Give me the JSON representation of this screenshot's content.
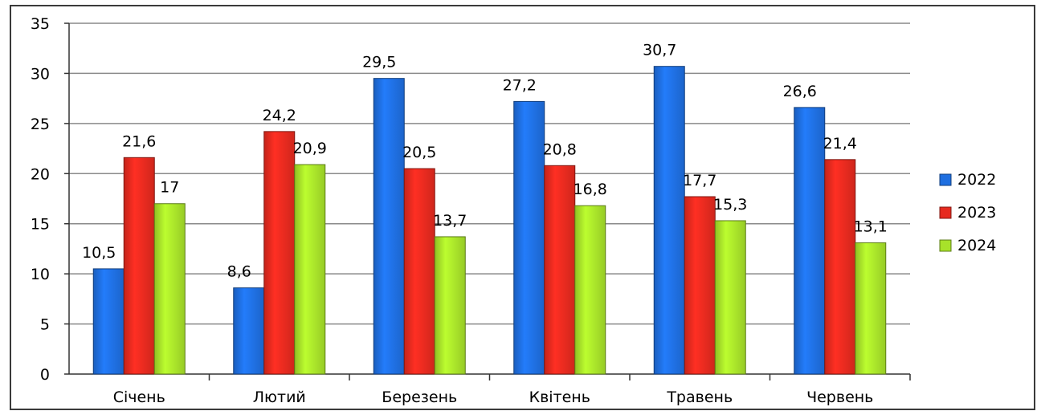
{
  "chart_data": {
    "type": "bar",
    "categories": [
      "Січень",
      "Лютий",
      "Березень",
      "Квітень",
      "Травень",
      "Червень"
    ],
    "series": [
      {
        "name": "2022",
        "values": [
          10.5,
          8.6,
          29.5,
          27.2,
          30.7,
          26.6
        ],
        "labels": [
          "10,5",
          "8,6",
          "29,5",
          "27,2",
          "30,7",
          "26,6"
        ],
        "color": "#1f6fe0"
      },
      {
        "name": "2023",
        "values": [
          21.6,
          24.2,
          20.5,
          20.8,
          17.7,
          21.4
        ],
        "labels": [
          "21,6",
          "24,2",
          "20,5",
          "20,8",
          "17,7",
          "21,4"
        ],
        "color": "#e62a1f"
      },
      {
        "name": "2024",
        "values": [
          17,
          20.9,
          13.7,
          16.8,
          15.3,
          13.1
        ],
        "labels": [
          "17",
          "20,9",
          "13,7",
          "16,8",
          "15,3",
          "13,1"
        ],
        "color": "#a8e22a"
      }
    ],
    "ylim": [
      0,
      35
    ],
    "yticks": [
      0,
      5,
      10,
      15,
      20,
      25,
      30,
      35
    ],
    "grid": true,
    "legend_position": "right",
    "title": "",
    "xlabel": "",
    "ylabel": ""
  }
}
